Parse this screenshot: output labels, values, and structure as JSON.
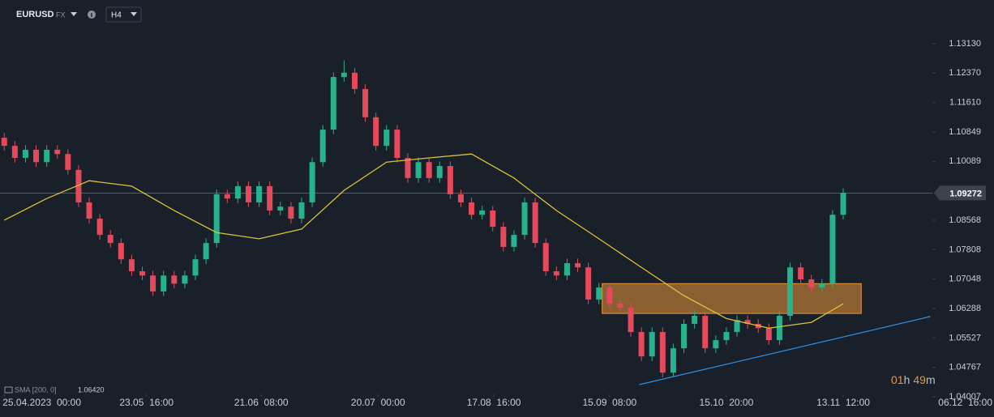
{
  "chart_data": {
    "type": "candlestick",
    "symbol": "EURUSD",
    "market": "FX",
    "timeframe": "H4",
    "up_color": "#26b28c",
    "down_color": "#e5495c",
    "open": [
      1.107,
      1.1049,
      1.1018,
      1.1039,
      1.1007,
      1.1039,
      1.1028,
      1.0987,
      1.0903,
      1.0861,
      1.0819,
      1.0798,
      1.0756,
      1.0725,
      1.0714,
      1.0673,
      1.0714,
      1.0693,
      1.0714,
      1.0756,
      1.0798,
      1.0924,
      1.0913,
      1.0945,
      1.0903,
      1.0945,
      1.0882,
      1.0892,
      1.0861,
      1.0903,
      1.1007,
      1.1091,
      1.1227,
      1.1238,
      1.1196,
      1.1123,
      1.1049,
      1.1091,
      1.1018,
      1.0966,
      1.1007,
      1.0966,
      1.0997,
      1.0924,
      1.0903,
      1.0871,
      1.0882,
      1.084,
      1.0788,
      1.0819,
      1.0903,
      1.0798,
      1.0725,
      1.0714,
      1.0746,
      1.0735,
      1.0652,
      1.0683,
      1.0641,
      1.0631,
      1.0568,
      1.0505,
      1.0568,
      1.0463,
      1.0526,
      1.0589,
      1.061,
      1.0526,
      1.0547,
      1.0568,
      1.0599,
      1.0589,
      1.0578,
      1.0547,
      1.061,
      1.0735,
      1.0704,
      1.0683,
      1.0693,
      1.0871
    ],
    "high": [
      1.1082,
      1.1061,
      1.1051,
      1.1051,
      1.1051,
      1.1051,
      1.104,
      1.0999,
      1.0915,
      1.0873,
      1.0831,
      1.081,
      1.0768,
      1.0737,
      1.0726,
      1.0726,
      1.0726,
      1.0726,
      1.0768,
      1.081,
      1.0936,
      1.0936,
      1.0957,
      1.0957,
      1.0957,
      1.0957,
      1.0904,
      1.0904,
      1.0915,
      1.1019,
      1.1103,
      1.1239,
      1.127,
      1.125,
      1.1208,
      1.1135,
      1.1103,
      1.1103,
      1.103,
      1.1019,
      1.1019,
      1.1009,
      1.1009,
      1.0936,
      1.0915,
      1.0894,
      1.0894,
      1.0852,
      1.0831,
      1.0915,
      1.0915,
      1.081,
      1.0737,
      1.0758,
      1.0758,
      1.0747,
      1.0695,
      1.0695,
      1.0653,
      1.0643,
      1.058,
      1.058,
      1.058,
      1.0538,
      1.0601,
      1.0622,
      1.0622,
      1.0559,
      1.058,
      1.0611,
      1.0611,
      1.0601,
      1.059,
      1.0622,
      1.0747,
      1.0747,
      1.0716,
      1.0705,
      1.0883,
      1.0939
    ],
    "low": [
      1.1037,
      1.1006,
      1.1006,
      1.0995,
      1.0995,
      1.1016,
      1.0975,
      1.0891,
      1.0849,
      1.0807,
      1.0786,
      1.0744,
      1.0713,
      1.0702,
      1.0661,
      1.0661,
      1.0681,
      1.0681,
      1.0702,
      1.0744,
      1.0786,
      1.0901,
      1.0901,
      1.0891,
      1.0891,
      1.087,
      1.087,
      1.0849,
      1.0849,
      1.0891,
      1.0995,
      1.1079,
      1.1215,
      1.1184,
      1.1111,
      1.1037,
      1.1037,
      1.1006,
      1.0954,
      1.0954,
      1.0954,
      1.0954,
      1.0912,
      1.0891,
      1.0859,
      1.0859,
      1.0828,
      1.0776,
      1.0776,
      1.0807,
      1.0786,
      1.0713,
      1.0702,
      1.0702,
      1.0723,
      1.064,
      1.064,
      1.0629,
      1.0619,
      1.0556,
      1.0493,
      1.0493,
      1.0451,
      1.0451,
      1.0514,
      1.0577,
      1.0514,
      1.0514,
      1.0535,
      1.0556,
      1.0577,
      1.0566,
      1.0535,
      1.0535,
      1.0598,
      1.0692,
      1.0671,
      1.0671,
      1.0681,
      1.0859
    ],
    "close": [
      1.1049,
      1.1018,
      1.1039,
      1.1007,
      1.1039,
      1.1028,
      1.0987,
      1.0903,
      1.0861,
      1.0819,
      1.0798,
      1.0756,
      1.0725,
      1.0714,
      1.0673,
      1.0714,
      1.0693,
      1.0714,
      1.0756,
      1.0798,
      1.0924,
      1.0913,
      1.0945,
      1.0903,
      1.0945,
      1.0882,
      1.0892,
      1.0861,
      1.0903,
      1.1007,
      1.1091,
      1.1227,
      1.1238,
      1.1196,
      1.1123,
      1.1049,
      1.1091,
      1.1018,
      1.0966,
      1.1007,
      1.0966,
      1.0997,
      1.0924,
      1.0903,
      1.0871,
      1.0882,
      1.084,
      1.0788,
      1.0819,
      1.0903,
      1.0798,
      1.0725,
      1.0714,
      1.0746,
      1.0735,
      1.0652,
      1.0683,
      1.0641,
      1.0631,
      1.0568,
      1.0505,
      1.0568,
      1.0463,
      1.0526,
      1.0589,
      1.061,
      1.0526,
      1.0547,
      1.0568,
      1.0599,
      1.0589,
      1.0578,
      1.0547,
      1.061,
      1.0735,
      1.0704,
      1.0683,
      1.0693,
      1.0871,
      1.0927
    ],
    "sma": {
      "legend_label": "SMA [200, 0]",
      "legend_value": "1.06420",
      "color": "#d8c33a",
      "x": [
        0,
        4,
        8,
        12,
        16,
        20,
        24,
        28,
        32,
        36,
        40,
        44,
        48,
        52,
        56,
        60,
        64,
        68,
        72,
        76,
        79
      ],
      "values": [
        1.0857,
        1.0913,
        1.0959,
        1.0945,
        1.0882,
        1.0825,
        1.0809,
        1.0834,
        1.0934,
        1.1007,
        1.1018,
        1.1028,
        1.0966,
        1.0882,
        1.0809,
        1.0735,
        1.0662,
        1.0603,
        1.0578,
        1.0593,
        1.0641
      ]
    },
    "zone": {
      "x": [
        56.3,
        80.7
      ],
      "y": [
        1.0616,
        1.0693
      ],
      "color": "#e8963a"
    },
    "trendline": {
      "x": [
        59.8,
        87.2
      ],
      "y": [
        1.0432,
        1.0608
      ],
      "color": "#2f8fe0"
    },
    "current_price": 1.09272,
    "ylim": [
      1.0407,
      1.1426
    ],
    "yticks": [
      {
        "value": 1.1313,
        "label": "1.13130"
      },
      {
        "value": 1.1237,
        "label": "1.12370"
      },
      {
        "value": 1.1161,
        "label": "1.11610"
      },
      1.10849,
      1.10089,
      1.08568,
      1.07808,
      1.07048,
      1.06288,
      1.05527,
      1.04767,
      1.04007
    ],
    "xlim": [
      -0.4,
      93.2
    ],
    "xticks": [
      {
        "value": 0,
        "label": "25.04.2023  00:00"
      },
      {
        "value": 13.4,
        "label": "23.05  16:00"
      },
      {
        "value": 24.2,
        "label": "21.06  08:00"
      },
      {
        "value": 35.2,
        "label": "20.07  00:00"
      },
      {
        "value": 46.1,
        "label": "17.08  16:00"
      },
      {
        "value": 57,
        "label": "15.09  08:00"
      },
      {
        "value": 68,
        "label": "15.10  20:00"
      },
      {
        "value": 79,
        "label": "13.11  12:00"
      },
      {
        "value": 90.5,
        "label": "06.12  16:00"
      }
    ],
    "countdown": {
      "hours": "01",
      "h": "h",
      "minutes": "49",
      "m": "m"
    }
  }
}
